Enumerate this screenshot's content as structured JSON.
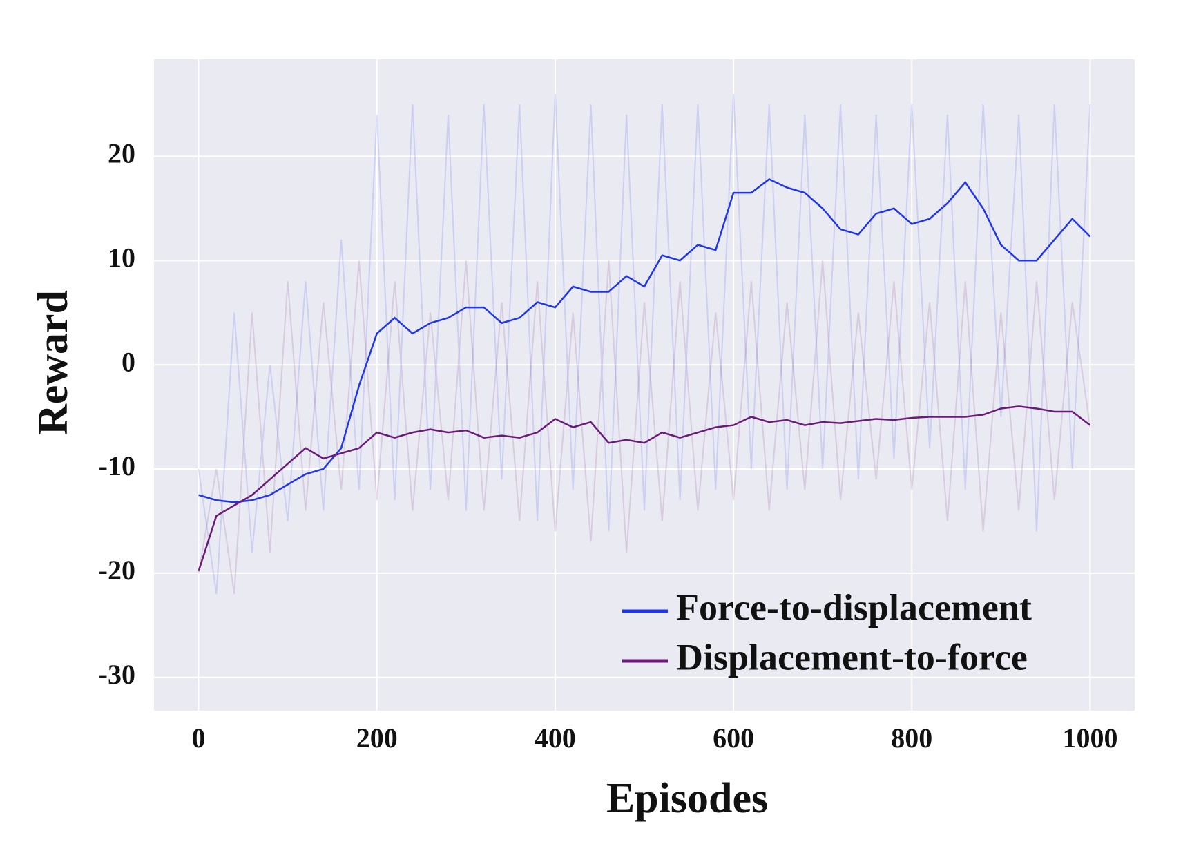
{
  "chart_data": {
    "type": "line",
    "x_label": "Episodes",
    "y_label": "Reward",
    "x": [
      0,
      20,
      40,
      60,
      80,
      100,
      120,
      140,
      160,
      180,
      200,
      220,
      240,
      260,
      280,
      300,
      320,
      340,
      360,
      380,
      400,
      420,
      440,
      460,
      480,
      500,
      520,
      540,
      560,
      580,
      600,
      620,
      640,
      660,
      680,
      700,
      720,
      740,
      760,
      780,
      800,
      820,
      840,
      860,
      880,
      900,
      920,
      940,
      960,
      980,
      1000
    ],
    "series": [
      {
        "name": "Force-to-displacement",
        "color": "#1f35e8",
        "values": [
          -12.5,
          -13,
          -13.2,
          -13,
          -12.5,
          -11.5,
          -10.5,
          -10,
          -8,
          -2,
          3,
          4.5,
          3,
          4,
          4.5,
          5.5,
          5.5,
          4,
          4.5,
          6,
          5.5,
          7.5,
          7,
          7,
          8.5,
          7.5,
          10.5,
          10,
          11.5,
          11,
          16.5,
          16.5,
          17.8,
          17,
          16.5,
          15,
          13,
          12.5,
          14.5,
          15,
          13.5,
          14,
          15.5,
          17.5,
          15,
          11.5,
          10,
          10,
          12,
          14,
          12.3
        ],
        "raw_values": [
          -10,
          -22,
          5,
          -18,
          0,
          -15,
          8,
          -14,
          12,
          -12,
          24,
          -13,
          25,
          -12,
          24,
          -14,
          25,
          -11,
          25,
          -15,
          26,
          -12,
          25,
          -16,
          24,
          -14,
          25,
          -13,
          25,
          -12,
          26,
          -10,
          25,
          -12,
          24,
          -10,
          25,
          -11,
          24,
          -9,
          25,
          -8,
          24,
          -12,
          25,
          -5,
          24,
          -16,
          25,
          -10,
          25
        ]
      },
      {
        "name": "Displacement-to-force",
        "color": "#6a1b78",
        "values": [
          -19.8,
          -14.5,
          -13.5,
          -12.5,
          -11,
          -9.5,
          -8,
          -9,
          -8.5,
          -8,
          -6.5,
          -7,
          -6.5,
          -6.2,
          -6.5,
          -6.3,
          -7,
          -6.8,
          -7,
          -6.5,
          -5.2,
          -6,
          -5.5,
          -7.5,
          -7.2,
          -7.5,
          -6.5,
          -7,
          -6.5,
          -6,
          -5.8,
          -5,
          -5.5,
          -5.3,
          -5.8,
          -5.5,
          -5.6,
          -5.4,
          -5.2,
          -5.3,
          -5.1,
          -5,
          -5,
          -5,
          -4.8,
          -4.2,
          -4,
          -4.2,
          -4.5,
          -4.5,
          -5.8
        ],
        "raw_values": [
          -20,
          -10,
          -22,
          5,
          -18,
          8,
          -14,
          6,
          -12,
          10,
          -13,
          8,
          -14,
          5,
          -13,
          10,
          -14,
          6,
          -15,
          8,
          -16,
          5,
          -17,
          10,
          -18,
          6,
          -15,
          8,
          -14,
          5,
          -13,
          8,
          -14,
          6,
          -12,
          10,
          -13,
          5,
          -11,
          8,
          -12,
          6,
          -15,
          8,
          -16,
          5,
          -14,
          8,
          -13,
          6,
          -6
        ]
      }
    ],
    "xlim": [
      -50,
      1050
    ],
    "ylim": [
      -33.2,
      29.3
    ],
    "xticks": [
      0,
      200,
      400,
      600,
      800,
      1000
    ],
    "yticks": [
      -30,
      -20,
      -10,
      0,
      10,
      20
    ],
    "grid": true,
    "legend": "lower right",
    "background": "#eaeaf2"
  }
}
